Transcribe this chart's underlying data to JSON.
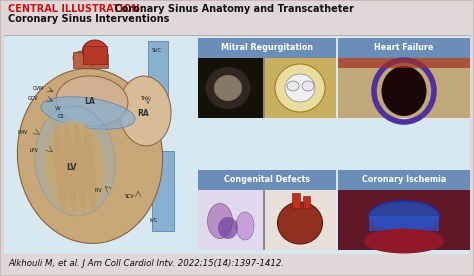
{
  "title_bold": "CENTRAL ILLUSTRATION:",
  "title_rest_line1": " Coronary Sinus Anatomy and Transcatheter",
  "title_line2": "Coronary Sinus Interventions",
  "citation": "Alkhouli M, et al. J Am Coll Cardiol Intv. 2022;15(14):1397-1412.",
  "panel_labels": [
    "Mitral Regurgitation",
    "Heart Failure",
    "Congenital Defects",
    "Coronary Ischemia"
  ],
  "panel_label_bg": "#6b8eb8",
  "panel_label_color": "#ffffff",
  "bg_outer": "#e0d8d8",
  "bg_inner": "#d8e8f0",
  "border_color": "#c8b8b8",
  "title_bold_color": "#cc1111",
  "title_normal_color": "#111111",
  "citation_color": "#111111",
  "figsize": [
    4.74,
    2.76
  ],
  "dpi": 100,
  "mr_img1_color": "#1a1510",
  "mr_img2_color": "#c8b848",
  "hf_img_top_color": "#c8a070",
  "hf_img_bot_color": "#7050a0",
  "cd_img1_color": "#c0b8d8",
  "cd_img2_color": "#a03028",
  "ci_img_color": "#602838",
  "heart_tan": "#c8a878",
  "heart_dark_tan": "#b08858",
  "heart_blue": "#8ab0d0",
  "heart_red": "#b84030",
  "heart_blue_dark": "#4a78a8"
}
